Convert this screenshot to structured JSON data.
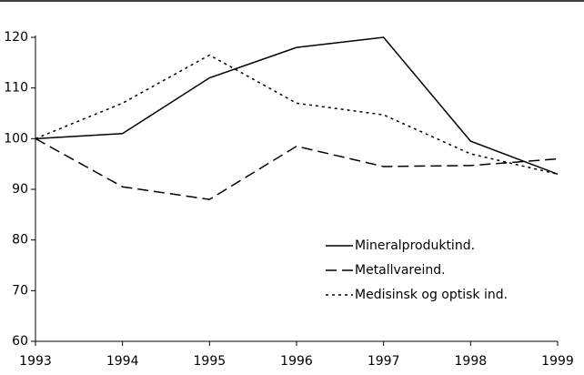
{
  "chart_data": {
    "type": "line",
    "x": [
      1993,
      1994,
      1995,
      1996,
      1997,
      1998,
      1999
    ],
    "series": [
      {
        "name": "Mineralproduktind.",
        "color": "#000000",
        "dash": "solid",
        "values": [
          100,
          101,
          112,
          118,
          120,
          99.5,
          93
        ]
      },
      {
        "name": "Metallvareind.",
        "color": "#000000",
        "dash": "dashed",
        "values": [
          100,
          90.5,
          88,
          98.5,
          94.5,
          94.7,
          96
        ]
      },
      {
        "name": "Medisinsk og optisk ind.",
        "color": "#000000",
        "dash": "dotted",
        "values": [
          100,
          107,
          116.5,
          107,
          104.7,
          97,
          93
        ]
      }
    ],
    "xlim": [
      1993,
      1999
    ],
    "xticks": [
      1993,
      1994,
      1995,
      1996,
      1997,
      1998,
      1999
    ],
    "ylim": [
      60,
      120
    ],
    "yticks": [
      60,
      70,
      80,
      90,
      100,
      110,
      120
    ],
    "grid": false,
    "legend": "lower right"
  }
}
